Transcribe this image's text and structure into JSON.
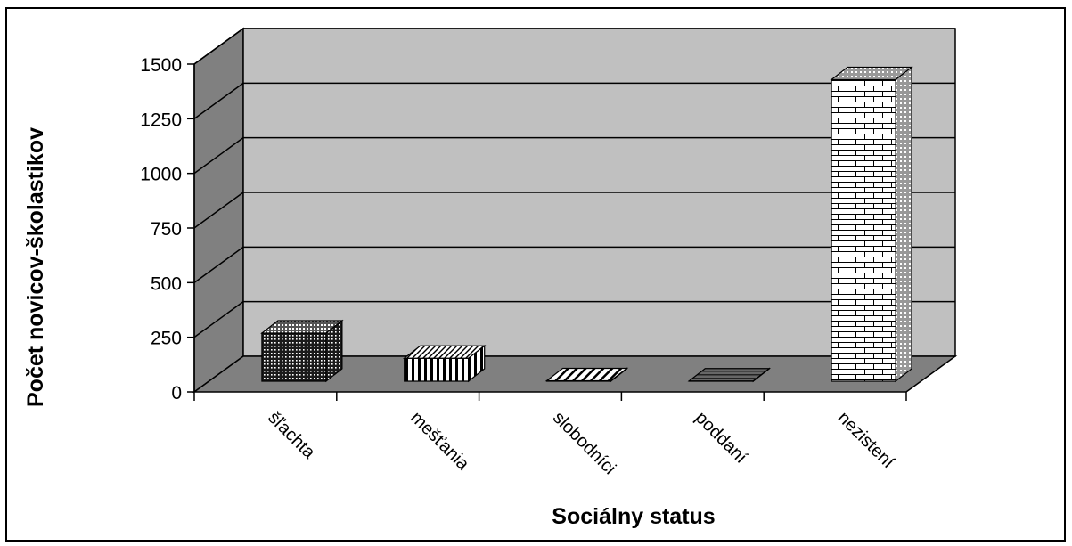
{
  "chart_data": {
    "type": "bar",
    "title": "",
    "xlabel": "Sociálny status",
    "ylabel": "Počet novicov-školastikov",
    "categories": [
      "šľachta",
      "mešťania",
      "slobodníci",
      "poddaní",
      "nezistení"
    ],
    "values": [
      220,
      105,
      2,
      1,
      1380
    ],
    "ylim": [
      0,
      1500
    ],
    "yticks": [
      "0",
      "250",
      "500",
      "750",
      "1000",
      "1250",
      "1500"
    ],
    "ytick_values": [
      0,
      250,
      500,
      750,
      1000,
      1250,
      1500
    ],
    "grid": true,
    "legend": "none",
    "style": "3d-column",
    "colors": {
      "wall": "#c0c0c0",
      "side_wall": "#808080",
      "floor": "#808080",
      "grid": "#000000"
    },
    "bar_patterns": [
      "dots",
      "vertical-stripes",
      "diagonal-stripes",
      "horizontal-stripes",
      "bricks"
    ]
  }
}
